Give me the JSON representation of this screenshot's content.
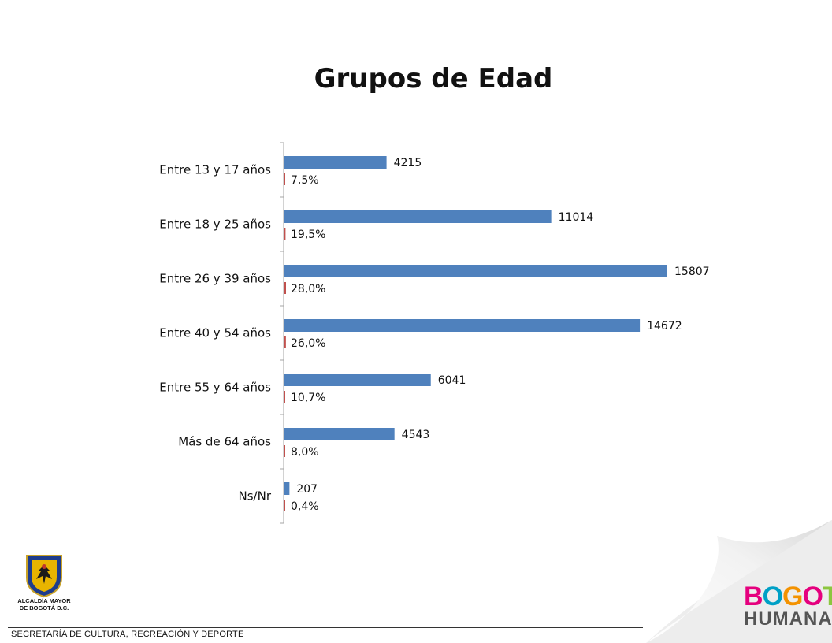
{
  "title": "Grupos de Edad",
  "footer": {
    "text": "SECRETARÍA DE CULTURA, RECREACIÓN Y DEPORTE",
    "org_line1": "ALCALDÍA MAYOR",
    "org_line2": "DE BOGOTÁ D.C.",
    "brand_word1": "BOGOTÁ",
    "brand_word2": "HUMANA"
  },
  "colors": {
    "bar_count": "#4f81bd",
    "bar_pct": "#c0504d",
    "axis": "#a6a6a6",
    "brand_letters": [
      "#e5007e",
      "#00a0c6",
      "#f39200",
      "#e5007e",
      "#8cc63f",
      "#00a0c6"
    ]
  },
  "icons": {
    "coat_of_arms": "coat-of-arms-icon",
    "page_curl": "page-curl-graphic"
  },
  "chart_data": {
    "type": "bar",
    "orientation": "horizontal",
    "title": "Grupos de Edad",
    "categories": [
      "Entre 13 y 17 años",
      "Entre 18 y 25 años",
      "Entre 26 y 39 años",
      "Entre 40 y 54 años",
      "Entre 55 y 64 años",
      "Más de 64 años",
      "Ns/Nr"
    ],
    "series": [
      {
        "values": [
          4215,
          11014,
          15807,
          14672,
          6041,
          4543,
          207
        ]
      },
      {
        "values": [
          7.5,
          19.5,
          28.0,
          26.0,
          10.7,
          8.0,
          0.4
        ],
        "labels": [
          "7,5%",
          "19,5%",
          "28,0%",
          "26,0%",
          "10,7%",
          "8,0%",
          "0,4%"
        ]
      }
    ],
    "grid": false,
    "legend": "none"
  }
}
